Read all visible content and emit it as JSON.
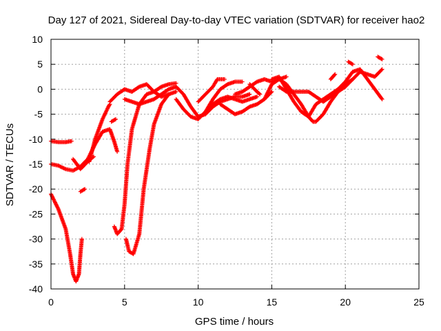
{
  "chart_data": {
    "type": "scatter",
    "title": "Day 127 of 2021, Sidereal Day-to-day VTEC variation (SDTVAR) for receiver hao2",
    "xlabel": "GPS time / hours",
    "ylabel": "SDTVAR / TECUs",
    "xlim": [
      0,
      25
    ],
    "ylim": [
      -40,
      10
    ],
    "xticks": [
      0,
      5,
      10,
      15,
      20,
      25
    ],
    "yticks": [
      10,
      5,
      0,
      -5,
      -10,
      -15,
      -20,
      -25,
      -30,
      -35,
      -40
    ],
    "grid": true,
    "marker": "plus",
    "color": "#ff0000",
    "series": [
      {
        "values": [
          [
            0.0,
            -10.4
          ],
          [
            0.5,
            -10.6
          ],
          [
            1.0,
            -10.6
          ],
          [
            1.4,
            -10.4
          ]
        ]
      },
      {
        "values": [
          [
            0.0,
            -15.0
          ],
          [
            0.5,
            -15.3
          ],
          [
            1.0,
            -16.0
          ],
          [
            1.5,
            -16.3
          ],
          [
            2.0,
            -15.5
          ],
          [
            2.5,
            -14.0
          ],
          [
            3.0,
            -11.0
          ],
          [
            3.5,
            -8.5
          ],
          [
            4.0,
            -8.0
          ],
          [
            4.3,
            -10.5
          ],
          [
            4.5,
            -12.5
          ]
        ]
      },
      {
        "values": [
          [
            0.0,
            -21.0
          ],
          [
            0.5,
            -24.0
          ],
          [
            1.0,
            -28.0
          ],
          [
            1.3,
            -33.0
          ],
          [
            1.5,
            -37.0
          ],
          [
            1.7,
            -38.5
          ],
          [
            1.9,
            -37.0
          ],
          [
            2.0,
            -33.0
          ],
          [
            2.1,
            -30.0
          ]
        ]
      },
      {
        "values": [
          [
            1.5,
            -14.0
          ],
          [
            2.0,
            -16.0
          ],
          [
            2.5,
            -14.5
          ],
          [
            2.9,
            -13.5
          ]
        ]
      },
      {
        "values": [
          [
            2.0,
            -20.5
          ],
          [
            2.3,
            -20.0
          ]
        ]
      },
      {
        "values": [
          [
            2.6,
            -14.5
          ],
          [
            3.0,
            -10.0
          ],
          [
            3.5,
            -6.0
          ],
          [
            3.9,
            -3.5
          ],
          [
            4.0,
            -3.0
          ]
        ]
      },
      {
        "values": [
          [
            4.1,
            -6.5
          ],
          [
            4.4,
            -6.0
          ]
        ]
      },
      {
        "values": [
          [
            4.3,
            -27.5
          ],
          [
            4.5,
            -29.0
          ],
          [
            4.8,
            -28.0
          ],
          [
            5.0,
            -23.0
          ],
          [
            5.2,
            -15.0
          ],
          [
            5.5,
            -8.0
          ],
          [
            6.0,
            -3.0
          ],
          [
            6.5,
            -1.0
          ],
          [
            7.0,
            -0.5
          ],
          [
            7.5,
            0.5
          ],
          [
            8.0,
            1.0
          ],
          [
            8.5,
            1.2
          ]
        ]
      },
      {
        "values": [
          [
            5.1,
            -30.0
          ],
          [
            5.3,
            -32.5
          ],
          [
            5.6,
            -33.0
          ],
          [
            6.0,
            -29.0
          ],
          [
            6.3,
            -20.0
          ],
          [
            6.7,
            -12.0
          ],
          [
            7.0,
            -7.0
          ],
          [
            7.5,
            -3.0
          ],
          [
            8.0,
            -1.0
          ],
          [
            8.5,
            -0.5
          ]
        ]
      },
      {
        "values": [
          [
            4.0,
            -2.5
          ],
          [
            4.5,
            -1.0
          ],
          [
            5.0,
            0.0
          ],
          [
            5.5,
            -0.5
          ],
          [
            6.0,
            0.5
          ],
          [
            6.5,
            1.0
          ],
          [
            7.0,
            -0.5
          ],
          [
            7.5,
            -1.5
          ],
          [
            8.0,
            -1.0
          ]
        ]
      },
      {
        "values": [
          [
            5.0,
            -2.0
          ],
          [
            5.5,
            -2.5
          ],
          [
            6.0,
            -3.0
          ],
          [
            6.5,
            -2.5
          ],
          [
            7.0,
            -2.0
          ],
          [
            7.5,
            -1.0
          ],
          [
            8.0,
            0.0
          ],
          [
            8.5,
            0.5
          ],
          [
            9.0,
            -1.0
          ],
          [
            9.5,
            -3.5
          ],
          [
            10.0,
            -5.5
          ],
          [
            10.5,
            -5.0
          ],
          [
            11.0,
            -3.5
          ],
          [
            11.5,
            -2.5
          ],
          [
            12.0,
            -2.0
          ],
          [
            12.5,
            -1.5
          ],
          [
            13.0,
            -1.5
          ],
          [
            13.5,
            -1.0
          ]
        ]
      },
      {
        "values": [
          [
            8.5,
            -2.0
          ],
          [
            9.0,
            -4.0
          ],
          [
            9.5,
            -5.5
          ],
          [
            10.0,
            -6.0
          ],
          [
            10.5,
            -4.5
          ],
          [
            11.0,
            -2.0
          ],
          [
            11.5,
            0.0
          ],
          [
            12.0,
            1.0
          ],
          [
            12.5,
            1.5
          ],
          [
            13.0,
            1.5
          ]
        ]
      },
      {
        "values": [
          [
            10.0,
            -2.5
          ],
          [
            10.5,
            -1.0
          ],
          [
            11.0,
            0.5
          ],
          [
            11.3,
            2.0
          ],
          [
            11.8,
            2.0
          ]
        ]
      },
      {
        "values": [
          [
            10.5,
            -4.5
          ],
          [
            11.0,
            -3.0
          ],
          [
            11.5,
            -2.0
          ],
          [
            12.0,
            -1.5
          ],
          [
            12.5,
            -2.0
          ],
          [
            13.0,
            -2.5
          ],
          [
            13.5,
            -2.0
          ],
          [
            14.0,
            -1.5
          ]
        ]
      },
      {
        "values": [
          [
            11.5,
            -3.0
          ],
          [
            12.0,
            -4.0
          ],
          [
            12.5,
            -5.0
          ],
          [
            13.0,
            -4.5
          ],
          [
            13.5,
            -3.5
          ],
          [
            14.0,
            -3.0
          ],
          [
            14.5,
            -2.0
          ],
          [
            15.0,
            -0.5
          ]
        ]
      },
      {
        "values": [
          [
            12.5,
            -1.0
          ],
          [
            13.0,
            -0.5
          ],
          [
            13.5,
            0.5
          ],
          [
            14.0,
            1.5
          ],
          [
            14.5,
            2.0
          ],
          [
            15.0,
            1.5
          ],
          [
            15.5,
            2.0
          ],
          [
            16.0,
            2.5
          ]
        ]
      },
      {
        "values": [
          [
            13.5,
            1.0
          ],
          [
            14.0,
            -0.5
          ],
          [
            14.2,
            -1.0
          ]
        ]
      },
      {
        "values": [
          [
            14.5,
            -2.0
          ],
          [
            15.0,
            1.0
          ],
          [
            15.5,
            2.0
          ],
          [
            16.0,
            1.0
          ],
          [
            16.5,
            -1.0
          ],
          [
            17.0,
            -3.0
          ],
          [
            17.5,
            -5.5
          ],
          [
            17.8,
            -6.5
          ],
          [
            18.0,
            -6.5
          ],
          [
            18.5,
            -5.0
          ],
          [
            19.0,
            -2.5
          ],
          [
            19.5,
            -0.5
          ],
          [
            20.0,
            0.5
          ],
          [
            20.5,
            2.0
          ],
          [
            21.0,
            3.5
          ],
          [
            21.5,
            3.0
          ],
          [
            22.0,
            2.5
          ],
          [
            22.5,
            4.0
          ]
        ]
      },
      {
        "values": [
          [
            15.0,
            2.0
          ],
          [
            15.5,
            2.5
          ],
          [
            16.0,
            0.0
          ],
          [
            16.5,
            -2.5
          ],
          [
            17.0,
            -4.5
          ],
          [
            17.5,
            -5.5
          ],
          [
            18.0,
            -3.0
          ],
          [
            18.5,
            -2.0
          ],
          [
            19.0,
            -1.0
          ],
          [
            19.5,
            0.0
          ],
          [
            20.0,
            1.0
          ],
          [
            20.5,
            2.0
          ]
        ]
      },
      {
        "values": [
          [
            15.5,
            0.5
          ],
          [
            16.0,
            -0.5
          ],
          [
            16.5,
            -0.5
          ],
          [
            17.0,
            -0.5
          ],
          [
            17.5,
            -0.5
          ],
          [
            18.0,
            -1.5
          ],
          [
            18.5,
            -2.5
          ],
          [
            19.0,
            -1.5
          ],
          [
            19.5,
            0.0
          ],
          [
            20.0,
            1.5
          ],
          [
            20.5,
            3.5
          ],
          [
            21.0,
            4.0
          ],
          [
            21.5,
            2.0
          ],
          [
            22.0,
            0.0
          ],
          [
            22.5,
            -2.0
          ]
        ]
      },
      {
        "values": [
          [
            19.0,
            2.0
          ],
          [
            19.3,
            3.0
          ]
        ]
      },
      {
        "values": [
          [
            20.2,
            5.5
          ],
          [
            20.5,
            5.0
          ]
        ]
      },
      {
        "values": [
          [
            22.2,
            6.5
          ],
          [
            22.5,
            6.0
          ]
        ]
      }
    ]
  }
}
